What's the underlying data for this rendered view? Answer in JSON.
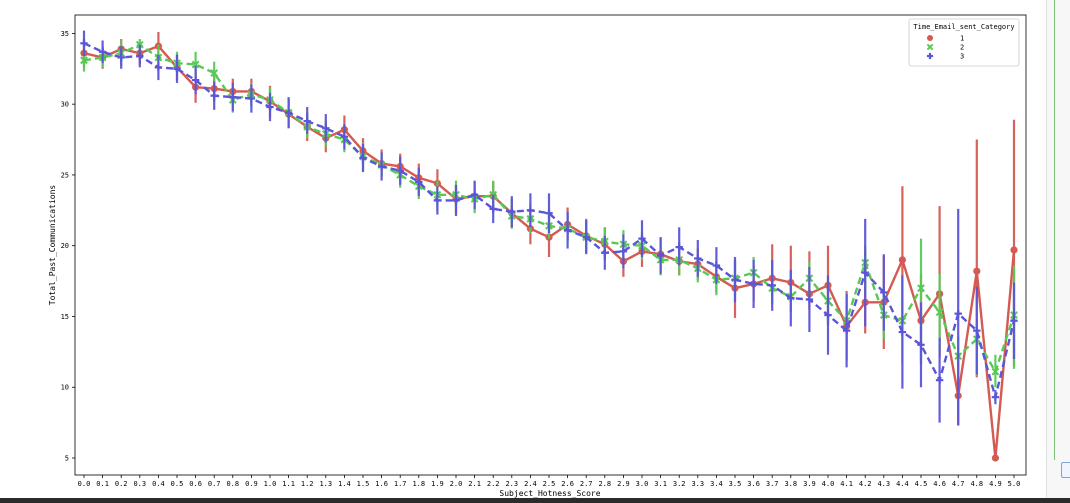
{
  "chart_data": {
    "type": "line",
    "xlabel": "Subject_Hotness_Score",
    "ylabel": "Total_Past_Communications",
    "ylim": [
      3.8,
      36.3
    ],
    "yticks": [
      5,
      10,
      15,
      20,
      25,
      30,
      35
    ],
    "categories": [
      "0.0",
      "0.1",
      "0.2",
      "0.3",
      "0.4",
      "0.5",
      "0.6",
      "0.7",
      "0.8",
      "0.9",
      "1.0",
      "1.1",
      "1.2",
      "1.3",
      "1.4",
      "1.5",
      "1.6",
      "1.7",
      "1.8",
      "1.9",
      "2.0",
      "2.1",
      "2.2",
      "2.3",
      "2.4",
      "2.5",
      "2.6",
      "2.7",
      "2.8",
      "2.9",
      "3.0",
      "3.1",
      "3.2",
      "3.3",
      "3.4",
      "3.5",
      "3.6",
      "3.7",
      "3.8",
      "3.9",
      "4.0",
      "4.1",
      "4.2",
      "4.3",
      "4.4",
      "4.5",
      "4.6",
      "4.7",
      "4.8",
      "4.9",
      "5.0"
    ],
    "legend": {
      "title": "Time_Email_sent_Category",
      "position": "top-right"
    },
    "grid": false,
    "series": [
      {
        "name": "1",
        "color": "#d45a52",
        "marker": "circle",
        "dash": "solid",
        "values": [
          33.6,
          33.3,
          33.9,
          33.6,
          34.1,
          32.6,
          31.2,
          31.1,
          30.9,
          30.9,
          30.2,
          29.3,
          28.4,
          27.6,
          28.2,
          26.7,
          25.8,
          25.6,
          24.8,
          24.4,
          23.3,
          23.5,
          23.5,
          22.3,
          21.2,
          20.6,
          21.5,
          20.7,
          20.1,
          18.9,
          19.6,
          19.4,
          18.9,
          18.7,
          17.8,
          17.0,
          17.3,
          17.7,
          17.4,
          16.6,
          17.2,
          14.3,
          16.0,
          16.0,
          19.0,
          14.7,
          16.6,
          9.4,
          18.2,
          5.0,
          19.7
        ],
        "err_low": [
          32.6,
          32.5,
          33.1,
          32.8,
          33.2,
          31.7,
          30.1,
          30.2,
          30.0,
          29.9,
          29.1,
          28.3,
          27.4,
          26.6,
          27.2,
          25.8,
          24.9,
          24.7,
          23.8,
          23.4,
          22.2,
          22.5,
          22.6,
          21.3,
          20.1,
          19.2,
          20.4,
          19.5,
          19.0,
          17.8,
          18.5,
          18.2,
          17.9,
          17.6,
          16.7,
          14.9,
          16.1,
          16.4,
          16.1,
          15.5,
          14.4,
          11.9,
          13.8,
          12.7,
          13.9,
          11.6,
          12.1,
          7.3,
          10.7,
          4.9,
          11.5
        ],
        "err_high": [
          34.6,
          34.1,
          34.6,
          34.3,
          35.1,
          33.5,
          32.4,
          32.1,
          31.8,
          31.8,
          31.3,
          30.4,
          29.4,
          28.6,
          29.2,
          27.6,
          26.8,
          26.5,
          25.8,
          25.4,
          24.3,
          24.5,
          24.5,
          23.3,
          22.4,
          22.0,
          22.7,
          21.9,
          21.3,
          20.0,
          20.7,
          20.6,
          20.0,
          19.8,
          18.9,
          19.0,
          18.6,
          20.1,
          20.0,
          19.6,
          20.0,
          16.8,
          19.7,
          19.3,
          24.2,
          18.0,
          22.8,
          12.2,
          27.5,
          5.1,
          28.9
        ]
      },
      {
        "name": "2",
        "color": "#59c956",
        "marker": "x",
        "dash": "dashed",
        "values": [
          33.1,
          33.3,
          33.6,
          34.2,
          33.3,
          32.9,
          32.8,
          32.2,
          30.3,
          30.7,
          30.3,
          29.4,
          28.4,
          27.9,
          27.5,
          26.3,
          25.7,
          25.0,
          24.2,
          23.6,
          23.6,
          23.3,
          23.6,
          22.1,
          21.9,
          21.4,
          21.2,
          20.6,
          20.3,
          20.1,
          20.0,
          19.0,
          19.0,
          18.4,
          17.6,
          17.7,
          18.1,
          17.0,
          16.4,
          17.7,
          16.1,
          14.7,
          18.8,
          15.1,
          14.7,
          17.0,
          15.3,
          12.2,
          13.4,
          11.1,
          15.1
        ],
        "err_low": [
          32.3,
          32.6,
          32.7,
          33.5,
          32.5,
          32.2,
          32.0,
          31.3,
          29.4,
          29.8,
          29.5,
          28.5,
          27.6,
          27.0,
          26.6,
          25.3,
          24.9,
          24.1,
          23.3,
          22.5,
          22.6,
          22.3,
          22.5,
          21.2,
          20.9,
          20.5,
          20.3,
          19.5,
          19.3,
          19.0,
          19.0,
          17.9,
          17.9,
          17.4,
          16.5,
          16.5,
          16.9,
          15.9,
          15.3,
          16.5,
          14.5,
          12.8,
          16.8,
          13.4,
          11.7,
          11.8,
          12.5,
          10.8,
          10.8,
          10.0,
          11.3
        ],
        "err_high": [
          33.9,
          34.0,
          34.5,
          34.6,
          34.2,
          33.7,
          33.7,
          33.0,
          31.1,
          31.5,
          31.2,
          30.3,
          29.3,
          28.8,
          28.4,
          27.3,
          26.5,
          26.0,
          25.2,
          24.6,
          24.6,
          24.2,
          24.6,
          23.1,
          23.0,
          22.3,
          22.1,
          21.7,
          21.3,
          21.1,
          21.0,
          20.1,
          20.2,
          19.5,
          18.7,
          18.9,
          19.2,
          18.2,
          17.6,
          18.9,
          17.7,
          16.6,
          20.0,
          17.0,
          17.6,
          20.5,
          18.0,
          13.6,
          14.6,
          12.3,
          18.6
        ]
      },
      {
        "name": "3",
        "color": "#5a55d9",
        "marker": "plus",
        "dash": "dashed",
        "values": [
          34.3,
          33.7,
          33.3,
          33.4,
          32.6,
          32.5,
          31.7,
          30.6,
          30.5,
          30.4,
          29.8,
          29.4,
          28.8,
          28.3,
          27.7,
          26.2,
          25.6,
          25.3,
          24.5,
          23.2,
          23.2,
          23.6,
          22.6,
          22.4,
          22.5,
          22.3,
          21.1,
          20.6,
          19.5,
          19.6,
          20.5,
          19.3,
          19.9,
          19.1,
          18.6,
          17.6,
          17.3,
          17.2,
          16.3,
          16.2,
          15.1,
          14.0,
          18.1,
          16.7,
          13.9,
          13.0,
          10.5,
          15.2,
          14.0,
          9.3,
          14.7
        ],
        "err_low": [
          33.4,
          32.9,
          32.5,
          32.6,
          31.7,
          31.5,
          30.7,
          29.6,
          29.5,
          29.4,
          28.8,
          28.3,
          27.9,
          27.3,
          26.8,
          25.2,
          24.6,
          24.3,
          23.5,
          22.2,
          22.1,
          22.6,
          21.6,
          21.3,
          21.3,
          20.9,
          19.8,
          19.4,
          18.3,
          18.4,
          19.2,
          18.0,
          18.6,
          17.8,
          17.3,
          16.0,
          15.6,
          15.4,
          14.3,
          13.9,
          12.3,
          11.4,
          14.3,
          14.0,
          9.9,
          10.0,
          7.5,
          7.3,
          10.9,
          8.8,
          12.0
        ],
        "err_high": [
          35.2,
          34.5,
          34.1,
          34.2,
          33.5,
          33.5,
          32.7,
          31.6,
          31.5,
          31.4,
          30.8,
          30.5,
          29.8,
          29.3,
          28.6,
          27.2,
          26.6,
          26.3,
          25.5,
          24.2,
          24.3,
          24.6,
          23.6,
          23.5,
          23.7,
          23.7,
          22.4,
          21.8,
          20.7,
          20.8,
          21.8,
          20.6,
          21.3,
          20.4,
          19.9,
          19.2,
          19.0,
          19.0,
          18.3,
          18.5,
          17.9,
          16.6,
          21.9,
          19.4,
          17.9,
          16.0,
          13.5,
          22.6,
          17.1,
          9.8,
          17.4
        ]
      }
    ]
  }
}
